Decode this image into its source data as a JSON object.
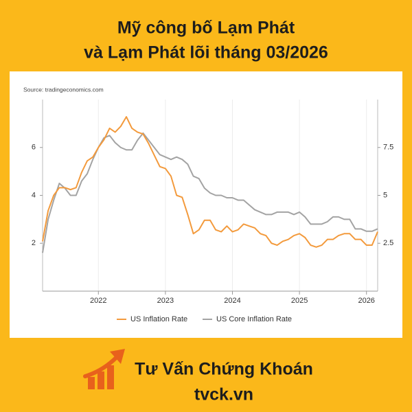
{
  "header": {
    "title_lines": [
      "Mỹ công bố Lạm Phát",
      "và Lạm Phát lõi tháng 03/2026"
    ]
  },
  "chart_data": {
    "type": "line",
    "source": "Source: tradingeconomics.com",
    "x": [
      2021.167,
      2021.25,
      2021.333,
      2021.417,
      2021.5,
      2021.583,
      2021.667,
      2021.75,
      2021.833,
      2021.917,
      2022,
      2022.083,
      2022.167,
      2022.25,
      2022.333,
      2022.417,
      2022.5,
      2022.583,
      2022.667,
      2022.75,
      2022.833,
      2022.917,
      2023,
      2023.083,
      2023.167,
      2023.25,
      2023.333,
      2023.417,
      2023.5,
      2023.583,
      2023.667,
      2023.75,
      2023.833,
      2023.917,
      2024,
      2024.083,
      2024.167,
      2024.25,
      2024.333,
      2024.417,
      2024.5,
      2024.583,
      2024.667,
      2024.75,
      2024.833,
      2024.917,
      2025,
      2025.083,
      2025.167,
      2025.25,
      2025.333,
      2025.417,
      2025.5,
      2025.583,
      2025.667,
      2025.75,
      2025.833,
      2025.917,
      2026,
      2026.083,
      2026.167
    ],
    "xlim": [
      2021.167,
      2026.167
    ],
    "xticks": [
      2022,
      2023,
      2024,
      2025,
      2026
    ],
    "ylim": [
      0,
      8
    ],
    "yticks": [
      2,
      4,
      6
    ],
    "y2lim": [
      0,
      10
    ],
    "y2ticks": [
      2.5,
      5,
      7.5
    ],
    "grid": "x",
    "legend": "bottom",
    "series": [
      {
        "name": "US Inflation Rate",
        "color": "#f39a3c",
        "axis": "y2",
        "values": [
          2.6,
          4.2,
          5.0,
          5.4,
          5.4,
          5.3,
          5.4,
          6.2,
          6.8,
          7.0,
          7.5,
          7.9,
          8.5,
          8.3,
          8.6,
          9.1,
          8.5,
          8.3,
          8.2,
          7.7,
          7.1,
          6.5,
          6.4,
          6.0,
          5.0,
          4.9,
          4.0,
          3.0,
          3.2,
          3.7,
          3.7,
          3.2,
          3.1,
          3.4,
          3.1,
          3.2,
          3.5,
          3.4,
          3.3,
          3.0,
          2.9,
          2.5,
          2.4,
          2.6,
          2.7,
          2.9,
          3.0,
          2.8,
          2.4,
          2.3,
          2.4,
          2.7,
          2.7,
          2.9,
          3.0,
          3.0,
          2.7,
          2.7,
          2.4,
          2.4,
          3.1
        ]
      },
      {
        "name": "US Core Inflation Rate",
        "color": "#a3a3a3",
        "values": [
          1.6,
          3.0,
          3.8,
          4.5,
          4.3,
          4.0,
          4.0,
          4.6,
          4.9,
          5.5,
          6.0,
          6.4,
          6.5,
          6.2,
          6.0,
          5.9,
          5.9,
          6.3,
          6.6,
          6.3,
          6.0,
          5.7,
          5.6,
          5.5,
          5.6,
          5.5,
          5.3,
          4.8,
          4.7,
          4.3,
          4.1,
          4.0,
          4.0,
          3.9,
          3.9,
          3.8,
          3.8,
          3.6,
          3.4,
          3.3,
          3.2,
          3.2,
          3.3,
          3.3,
          3.3,
          3.2,
          3.3,
          3.1,
          2.8,
          2.8,
          2.8,
          2.9,
          3.1,
          3.1,
          3.0,
          3.0,
          2.6,
          2.6,
          2.5,
          2.5,
          2.6
        ]
      }
    ]
  },
  "footer": {
    "brand": "Tư Vấn Chứng Khoán",
    "website": "tvck.vn"
  }
}
